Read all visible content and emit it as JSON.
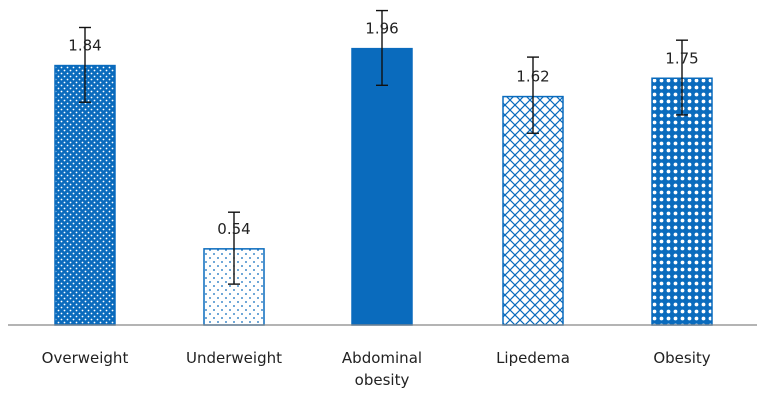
{
  "chart_data": {
    "type": "bar",
    "categories": [
      [
        "Overweight"
      ],
      [
        "Underweight"
      ],
      [
        "Abdominal",
        "obesity"
      ],
      [
        "Lipedema"
      ],
      [
        "Obesity"
      ]
    ],
    "values": [
      1.84,
      0.54,
      1.96,
      1.62,
      1.75
    ],
    "data_labels": [
      "1.84",
      "0.54",
      "1.96",
      "1.62",
      "1.75"
    ],
    "error_bars": [
      [
        1.58,
        2.11
      ],
      [
        0.29,
        0.8
      ],
      [
        1.7,
        2.23
      ],
      [
        1.36,
        1.9
      ],
      [
        1.49,
        2.02
      ]
    ],
    "patterns": [
      "dots-dense",
      "dots-sparse",
      "solid",
      "crosshatch",
      "circles"
    ],
    "color": "#0a6bbd",
    "ylim": [
      0,
      2.0
    ],
    "grid": false,
    "legend": "none",
    "title": "",
    "xlabel": "",
    "ylabel": ""
  }
}
